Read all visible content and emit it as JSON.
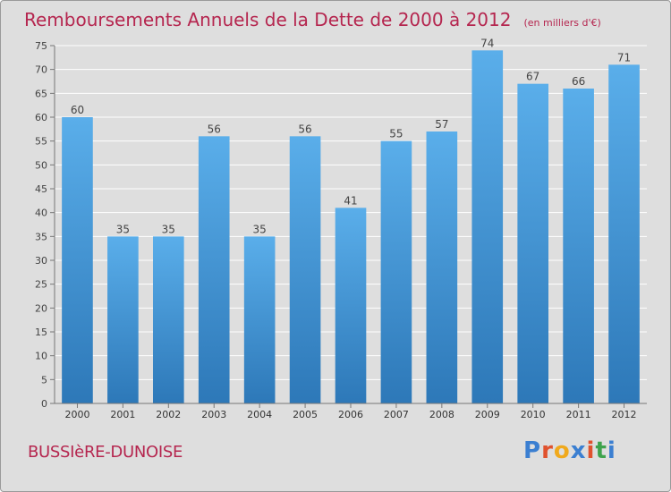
{
  "header": {
    "title": "Remboursements Annuels de la Dette de 2000 à 2012",
    "unit_note": "(en milliers d'€)"
  },
  "footer": {
    "commune": "BUSSIèRE-DUNOISE",
    "logo": {
      "letters": [
        "P",
        "r",
        "o",
        "x",
        "i",
        "t",
        "i"
      ],
      "colors": [
        "#3b7fd1",
        "#e0522e",
        "#f0a91c",
        "#3b7fd1",
        "#e0522e",
        "#3fa34d",
        "#3b7fd1"
      ]
    }
  },
  "colors": {
    "background": "#dedede",
    "title": "#b5264f",
    "bar_top": "#5aaeea",
    "bar_bottom": "#2d78b8",
    "gridline": "#ffffff"
  },
  "chart_data": {
    "type": "bar",
    "categories": [
      "2000",
      "2001",
      "2002",
      "2003",
      "2004",
      "2005",
      "2006",
      "2007",
      "2008",
      "2009",
      "2010",
      "2011",
      "2012"
    ],
    "values": [
      60,
      35,
      35,
      56,
      35,
      56,
      41,
      55,
      57,
      74,
      67,
      66,
      71
    ],
    "data_labels": [
      "60",
      "35",
      "35",
      "56",
      "35",
      "56",
      "41",
      "55",
      "57",
      "74",
      "67",
      "66",
      "71"
    ],
    "title": "Remboursements Annuels de la Dette de 2000 à 2012",
    "xlabel": "",
    "ylabel": "",
    "ylim": [
      0,
      75
    ],
    "yticks": [
      0,
      5,
      10,
      15,
      20,
      25,
      30,
      35,
      40,
      45,
      50,
      55,
      60,
      65,
      70,
      75
    ],
    "grid": true,
    "legend": "none"
  }
}
